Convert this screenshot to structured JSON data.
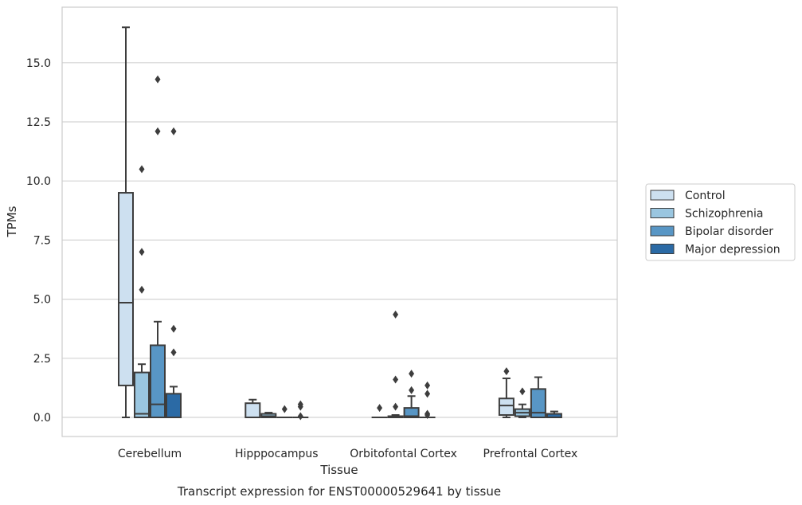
{
  "chart_data": {
    "type": "box",
    "title": "",
    "caption": "Transcript expression for ENST00000529641 by tissue",
    "xlabel": "Tissue",
    "ylabel": "TPMs",
    "ylim": [
      -0.8,
      17.3
    ],
    "yticks": [
      0.0,
      2.5,
      5.0,
      7.5,
      10.0,
      12.5,
      15.0
    ],
    "ytick_labels": [
      "0.0",
      "2.5",
      "5.0",
      "7.5",
      "10.0",
      "12.5",
      "15.0"
    ],
    "grid": "horizontal",
    "legend_position": "right",
    "categories": [
      "Cerebellum",
      "Hipppocampus",
      "Orbitofontal Cortex",
      "Prefrontal Cortex"
    ],
    "series": [
      {
        "name": "Control",
        "color": "#cde0f0",
        "boxes": [
          {
            "min": 0.0,
            "q1": 1.35,
            "median": 4.85,
            "q3": 9.5,
            "max": 16.5,
            "outliers": []
          },
          {
            "min": 0.0,
            "q1": 0.0,
            "median": 0.0,
            "q3": 0.6,
            "max": 0.75,
            "outliers": []
          },
          {
            "min": 0.0,
            "q1": 0.0,
            "median": 0.0,
            "q3": 0.0,
            "max": 0.0,
            "outliers": [
              0.4
            ]
          },
          {
            "min": 0.0,
            "q1": 0.1,
            "median": 0.5,
            "q3": 0.8,
            "max": 1.65,
            "outliers": [
              1.95
            ]
          }
        ]
      },
      {
        "name": "Schizophrenia",
        "color": "#9ac6e0",
        "boxes": [
          {
            "min": 0.0,
            "q1": 0.0,
            "median": 0.15,
            "q3": 1.9,
            "max": 2.25,
            "outliers": [
              5.4,
              7.0,
              10.5
            ]
          },
          {
            "min": 0.0,
            "q1": 0.0,
            "median": 0.05,
            "q3": 0.15,
            "max": 0.2,
            "outliers": []
          },
          {
            "min": 0.0,
            "q1": 0.0,
            "median": 0.0,
            "q3": 0.05,
            "max": 0.1,
            "outliers": [
              0.45,
              1.6,
              4.35
            ]
          },
          {
            "min": 0.0,
            "q1": 0.05,
            "median": 0.2,
            "q3": 0.35,
            "max": 0.55,
            "outliers": [
              1.1
            ]
          }
        ]
      },
      {
        "name": "Bipolar disorder",
        "color": "#5896c5",
        "boxes": [
          {
            "min": 0.0,
            "q1": 0.0,
            "median": 0.55,
            "q3": 3.05,
            "max": 4.05,
            "outliers": [
              12.1,
              14.3
            ]
          },
          {
            "min": 0.0,
            "q1": 0.0,
            "median": 0.0,
            "q3": 0.0,
            "max": 0.0,
            "outliers": [
              0.35
            ]
          },
          {
            "min": 0.0,
            "q1": 0.0,
            "median": 0.05,
            "q3": 0.4,
            "max": 0.9,
            "outliers": [
              1.15,
              1.85
            ]
          },
          {
            "min": 0.0,
            "q1": 0.0,
            "median": 0.2,
            "q3": 1.2,
            "max": 1.7,
            "outliers": []
          }
        ]
      },
      {
        "name": "Major depression",
        "color": "#2b6aa5",
        "boxes": [
          {
            "min": 0.0,
            "q1": 0.0,
            "median": 0.0,
            "q3": 1.0,
            "max": 1.3,
            "outliers": [
              2.75,
              3.75,
              12.1
            ]
          },
          {
            "min": 0.0,
            "q1": 0.0,
            "median": 0.0,
            "q3": 0.0,
            "max": 0.0,
            "outliers": [
              0.05,
              0.45,
              0.55
            ]
          },
          {
            "min": 0.0,
            "q1": 0.0,
            "median": 0.0,
            "q3": 0.0,
            "max": 0.0,
            "outliers": [
              0.1,
              0.15,
              1.0,
              1.35
            ]
          },
          {
            "min": 0.0,
            "q1": 0.0,
            "median": 0.0,
            "q3": 0.15,
            "max": 0.25,
            "outliers": []
          }
        ]
      }
    ]
  }
}
